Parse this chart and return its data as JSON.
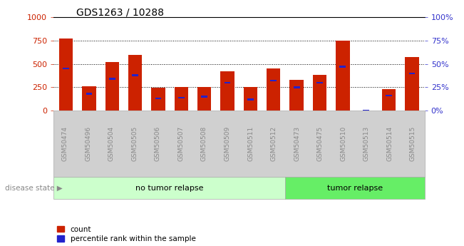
{
  "title": "GDS1263 / 10288",
  "samples": [
    "GSM50474",
    "GSM50496",
    "GSM50504",
    "GSM50505",
    "GSM50506",
    "GSM50507",
    "GSM50508",
    "GSM50509",
    "GSM50511",
    "GSM50512",
    "GSM50473",
    "GSM50475",
    "GSM50510",
    "GSM50513",
    "GSM50514",
    "GSM50515"
  ],
  "count": [
    775,
    265,
    520,
    600,
    245,
    250,
    250,
    420,
    250,
    455,
    330,
    385,
    750,
    0,
    230,
    575
  ],
  "percentile": [
    45,
    18,
    34,
    38,
    13,
    14,
    15,
    30,
    12,
    32,
    25,
    30,
    47,
    0,
    16,
    40
  ],
  "bar_width": 0.6,
  "count_color": "#cc2200",
  "percentile_color": "#2222cc",
  "ylim_left": [
    0,
    1000
  ],
  "ylim_right": [
    0,
    100
  ],
  "yticks_left": [
    0,
    250,
    500,
    750,
    1000
  ],
  "yticks_right": [
    0,
    25,
    50,
    75,
    100
  ],
  "no_tumor_label": "no tumor relapse",
  "tumor_label": "tumor relapse",
  "disease_label": "disease state",
  "no_tumor_count": 10,
  "no_tumor_color": "#ccffcc",
  "tumor_color": "#66ee66",
  "tick_label_color": "#888888",
  "right_axis_color": "#3333cc",
  "left_axis_color": "#cc2200",
  "legend_count_label": "count",
  "legend_pct_label": "percentile rank within the sample",
  "xtick_bg_color": "#d0d0d0"
}
